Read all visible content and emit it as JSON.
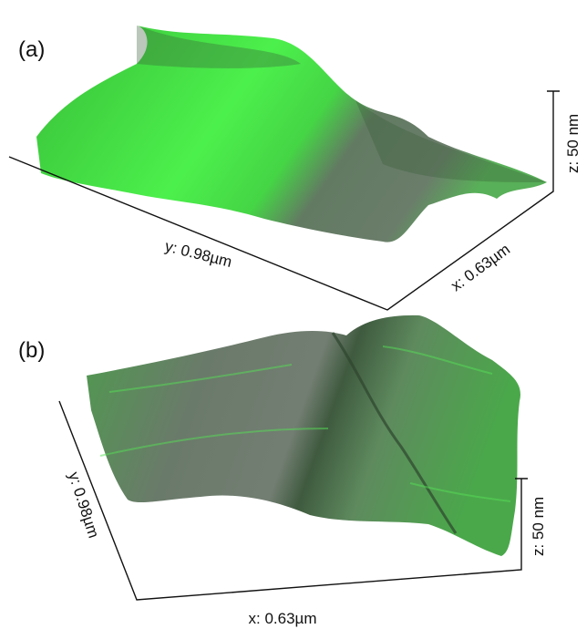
{
  "panels": [
    {
      "label": "(a)",
      "axes": {
        "y": "y: 0.98µm",
        "x": "x: 0.63µm",
        "z": "z: 50 nm"
      }
    },
    {
      "label": "(b)",
      "axes": {
        "y": "y: 0.98µm",
        "x": "x: 0.63µm",
        "z": "z: 50 nm"
      }
    }
  ]
}
